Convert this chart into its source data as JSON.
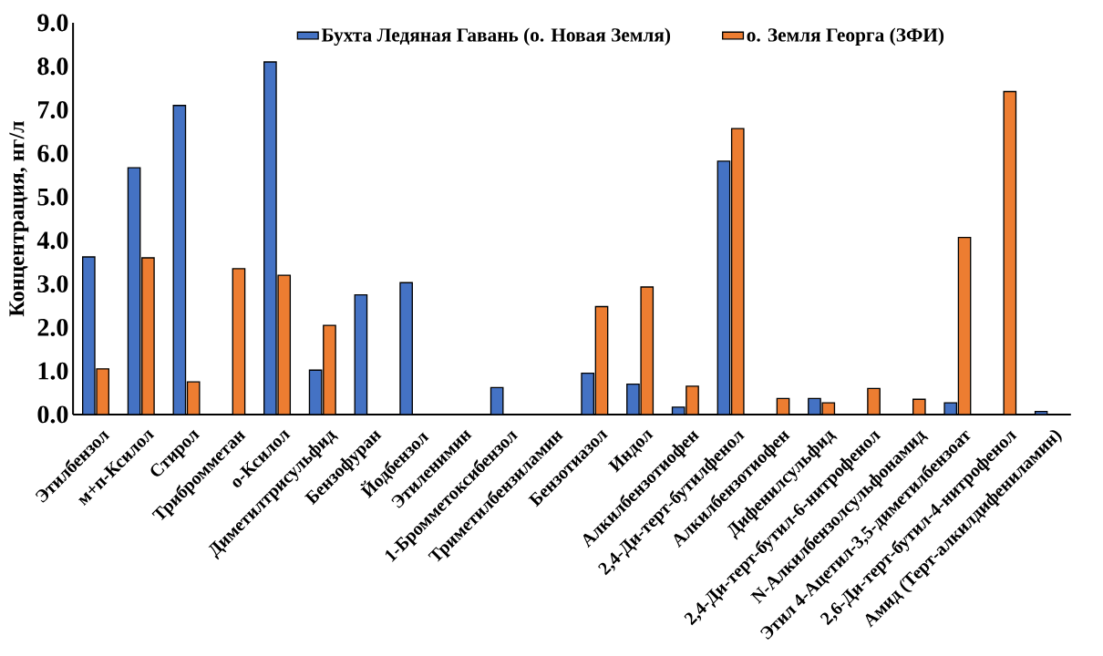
{
  "chart_data": {
    "type": "bar",
    "ylabel": "Концентрация, нг/л",
    "categories": [
      "Этилбензол",
      "м+п-Ксилол",
      "Стирол",
      "Трибромметан",
      "о-Ксилол",
      "Диметилтрисульфид",
      "Бензофуран",
      "Йодбензол",
      "Этиленимин",
      "1-Бромметоксибензол",
      "Триметилбензиламин",
      "Бензотиазол",
      "Индол",
      "Алкилбензотиофен",
      "2,4-Ди-терт-бутилфенол",
      "Алкилбензотиофен",
      "Дифенилсульфид",
      "2,4-Ди-терт-бутил-6-нитрофенол",
      "N-Алкилбензолсульфонамид",
      "Этил 4-Ацетил-3,5-диметилбензоат",
      "2,6-Ди-терт-бутил-4-нитрофенол",
      "Амид (Терт-алкилдифениламин)"
    ],
    "series": [
      {
        "name": "Бухта Ледяная Гавань (о. Новая Земля)",
        "color": "#4472c4",
        "values": [
          3.62,
          5.67,
          7.1,
          null,
          8.1,
          1.02,
          2.75,
          3.03,
          null,
          0.62,
          null,
          0.95,
          0.7,
          0.17,
          5.82,
          null,
          0.37,
          null,
          null,
          0.27,
          null,
          0.07
        ]
      },
      {
        "name": "о. Земля Георга (ЗФИ)",
        "color": "#ed7d31",
        "values": [
          1.05,
          3.6,
          0.75,
          3.35,
          3.2,
          2.05,
          null,
          null,
          null,
          null,
          null,
          2.48,
          2.93,
          0.65,
          6.57,
          0.37,
          0.27,
          0.6,
          0.35,
          4.07,
          7.42,
          null
        ]
      }
    ],
    "ylim": [
      0,
      9
    ],
    "yticks": [
      {
        "value": 0,
        "label": "0.0"
      },
      {
        "value": 1,
        "label": "1.0"
      },
      {
        "value": 2,
        "label": "2.0"
      },
      {
        "value": 3,
        "label": "3.0"
      },
      {
        "value": 4,
        "label": "4.0"
      },
      {
        "value": 5,
        "label": "5.0"
      },
      {
        "value": 6,
        "label": "6.0"
      },
      {
        "value": 7,
        "label": "7.0"
      },
      {
        "value": 8,
        "label": "8.0"
      },
      {
        "value": 9,
        "label": "9.0"
      }
    ],
    "grid": false,
    "legend": "top"
  }
}
